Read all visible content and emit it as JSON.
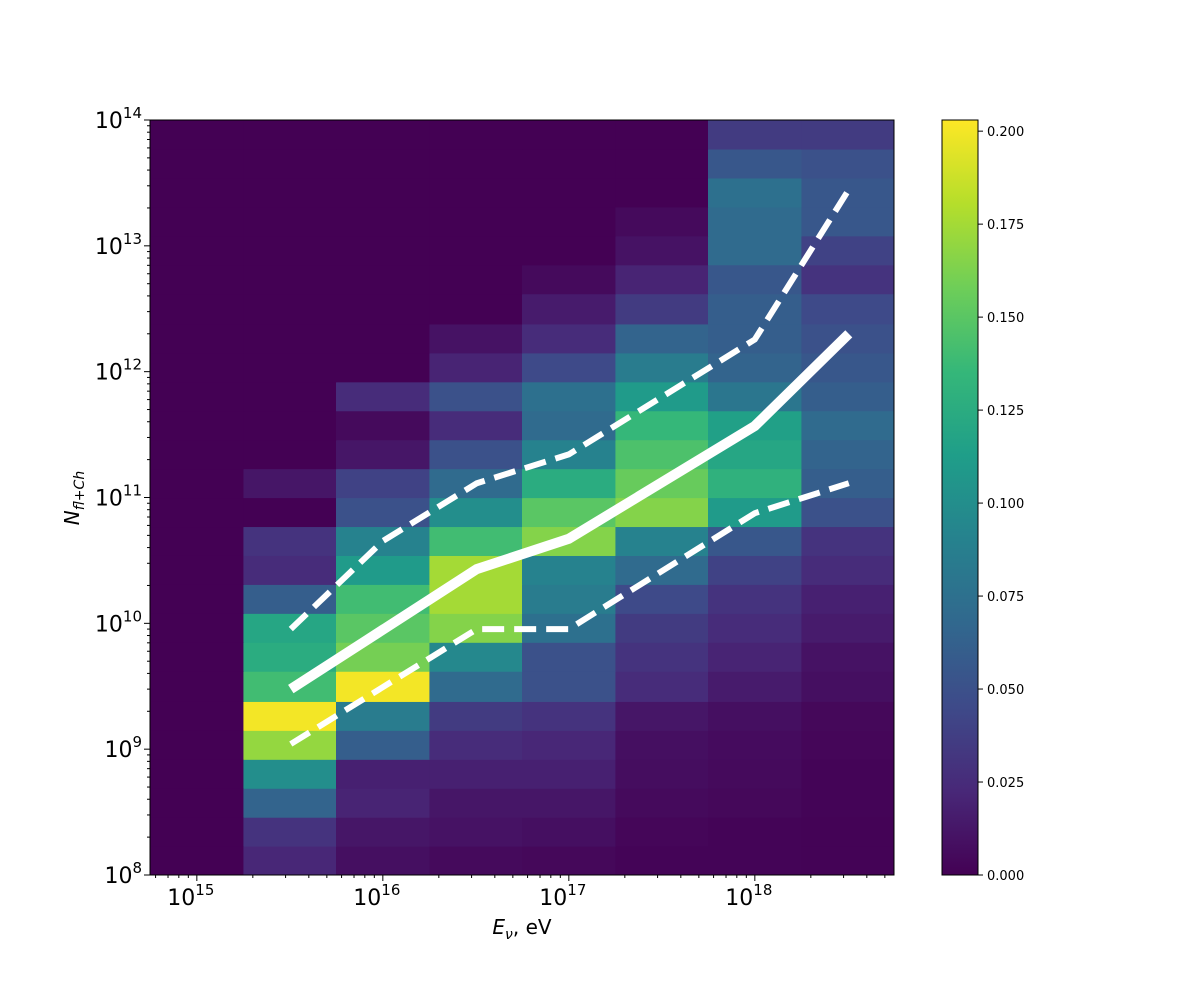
{
  "chart_data": {
    "type": "heatmap",
    "title": "",
    "xlabel": {
      "base": "E",
      "sub": "ν",
      "suffix": ", eV"
    },
    "ylabel": {
      "base": "N",
      "sub": "fl+Ch"
    },
    "x_scale": "log",
    "y_scale": "log",
    "xlim": [
      560000000000000.0,
      5.6e+18
    ],
    "ylim": [
      100000000.0,
      100000000000000.0
    ],
    "x_ticks": [
      {
        "value": 1000000000000000.0,
        "base": "10",
        "exp": "15"
      },
      {
        "value": 1e+16,
        "base": "10",
        "exp": "16"
      },
      {
        "value": 1e+17,
        "base": "10",
        "exp": "17"
      },
      {
        "value": 1e+18,
        "base": "10",
        "exp": "18"
      }
    ],
    "y_ticks": [
      {
        "value": 100000000.0,
        "base": "10",
        "exp": "8"
      },
      {
        "value": 1000000000.0,
        "base": "10",
        "exp": "9"
      },
      {
        "value": 10000000000.0,
        "base": "10",
        "exp": "10"
      },
      {
        "value": 100000000000.0,
        "base": "10",
        "exp": "11"
      },
      {
        "value": 1000000000000.0,
        "base": "10",
        "exp": "12"
      },
      {
        "value": 10000000000000.0,
        "base": "10",
        "exp": "13"
      },
      {
        "value": 100000000000000.0,
        "base": "10",
        "exp": "14"
      }
    ],
    "colormap": "viridis",
    "colorbar": {
      "min": 0.0,
      "max": 0.203,
      "ticks": [
        "0.000",
        "0.025",
        "0.050",
        "0.075",
        "0.100",
        "0.125",
        "0.150",
        "0.175",
        "0.200"
      ]
    },
    "x_bin_edges": [
      560000000000000.0,
      1780000000000000.0,
      5600000000000000.0,
      1.78e+16,
      5.6e+16,
      1.78e+17,
      5.6e+17,
      1.78e+18,
      5.6e+18
    ],
    "y_bin_edges_log10": [
      8.0,
      8.23,
      8.46,
      8.69,
      8.92,
      9.15,
      9.38,
      9.62,
      9.85,
      10.08,
      10.31,
      10.54,
      10.77,
      11.0,
      11.23,
      11.46,
      11.69,
      11.92,
      12.15,
      12.38,
      12.62,
      12.85,
      13.08,
      13.31,
      13.54,
      13.77,
      14.0
    ],
    "z": [
      [
        0,
        0.022,
        0.008,
        0.005,
        0.004,
        0.002,
        0.002,
        0.001
      ],
      [
        0,
        0.03,
        0.012,
        0.01,
        0.008,
        0.003,
        0.002,
        0.001
      ],
      [
        0,
        0.065,
        0.02,
        0.012,
        0.012,
        0.005,
        0.004,
        0.002
      ],
      [
        0,
        0.1,
        0.018,
        0.018,
        0.018,
        0.007,
        0.005,
        0.002
      ],
      [
        0,
        0.17,
        0.06,
        0.025,
        0.022,
        0.008,
        0.006,
        0.003
      ],
      [
        0,
        0.2,
        0.085,
        0.035,
        0.03,
        0.012,
        0.008,
        0.004
      ],
      [
        0,
        0.14,
        0.2,
        0.07,
        0.05,
        0.025,
        0.015,
        0.008
      ],
      [
        0,
        0.125,
        0.16,
        0.095,
        0.05,
        0.03,
        0.02,
        0.01
      ],
      [
        0,
        0.12,
        0.15,
        0.165,
        0.075,
        0.035,
        0.025,
        0.015
      ],
      [
        0,
        0.06,
        0.14,
        0.175,
        0.085,
        0.045,
        0.03,
        0.018
      ],
      [
        0,
        0.025,
        0.11,
        0.175,
        0.09,
        0.07,
        0.04,
        0.025
      ],
      [
        0,
        0.03,
        0.09,
        0.14,
        0.165,
        0.09,
        0.055,
        0.03
      ],
      [
        0,
        0,
        0.05,
        0.1,
        0.15,
        0.165,
        0.11,
        0.05
      ],
      [
        0,
        0.012,
        0.04,
        0.07,
        0.125,
        0.155,
        0.13,
        0.06
      ],
      [
        0,
        0,
        0.012,
        0.05,
        0.09,
        0.145,
        0.12,
        0.065
      ],
      [
        0,
        0,
        0.005,
        0.025,
        0.07,
        0.135,
        0.115,
        0.07
      ],
      [
        0,
        0,
        0.025,
        0.05,
        0.075,
        0.11,
        0.08,
        0.06
      ],
      [
        0,
        0,
        0,
        0.02,
        0.045,
        0.085,
        0.065,
        0.055
      ],
      [
        0,
        0,
        0,
        0.01,
        0.025,
        0.065,
        0.06,
        0.05
      ],
      [
        0,
        0,
        0,
        0,
        0.015,
        0.035,
        0.06,
        0.045
      ],
      [
        0,
        0,
        0,
        0,
        0.005,
        0.02,
        0.055,
        0.03
      ],
      [
        0,
        0,
        0,
        0,
        0,
        0.01,
        0.07,
        0.04
      ],
      [
        0,
        0,
        0,
        0,
        0,
        0.005,
        0.07,
        0.055
      ],
      [
        0,
        0,
        0,
        0,
        0,
        0,
        0.075,
        0.055
      ],
      [
        0,
        0,
        0,
        0,
        0,
        0,
        0.055,
        0.05
      ],
      [
        0,
        0,
        0,
        0,
        0,
        0,
        0.035,
        0.035
      ]
    ],
    "series": [
      {
        "style": "solid",
        "color": "#ffffff",
        "x": [
          3200000000000000.0,
          3.2e+16,
          1e+17,
          1e+18,
          3.2e+18
        ],
        "y": [
          3000000000.0,
          27000000000.0,
          47000000000.0,
          370000000000.0,
          2000000000000.0
        ]
      },
      {
        "style": "dashed",
        "color": "#ffffff",
        "x": [
          3200000000000000.0,
          1e+16,
          3.2e+16,
          1e+17,
          1e+18,
          3.2e+18
        ],
        "y": [
          9000000000.0,
          45000000000.0,
          130000000000.0,
          220000000000.0,
          1800000000000.0,
          28000000000000.0
        ]
      },
      {
        "style": "dashed",
        "color": "#ffffff",
        "x": [
          3200000000000000.0,
          3.2e+16,
          1e+17,
          1e+18,
          3.2e+18
        ],
        "y": [
          1100000000.0,
          9000000000.0,
          9000000000.0,
          75000000000.0,
          130000000000.0
        ]
      }
    ]
  }
}
